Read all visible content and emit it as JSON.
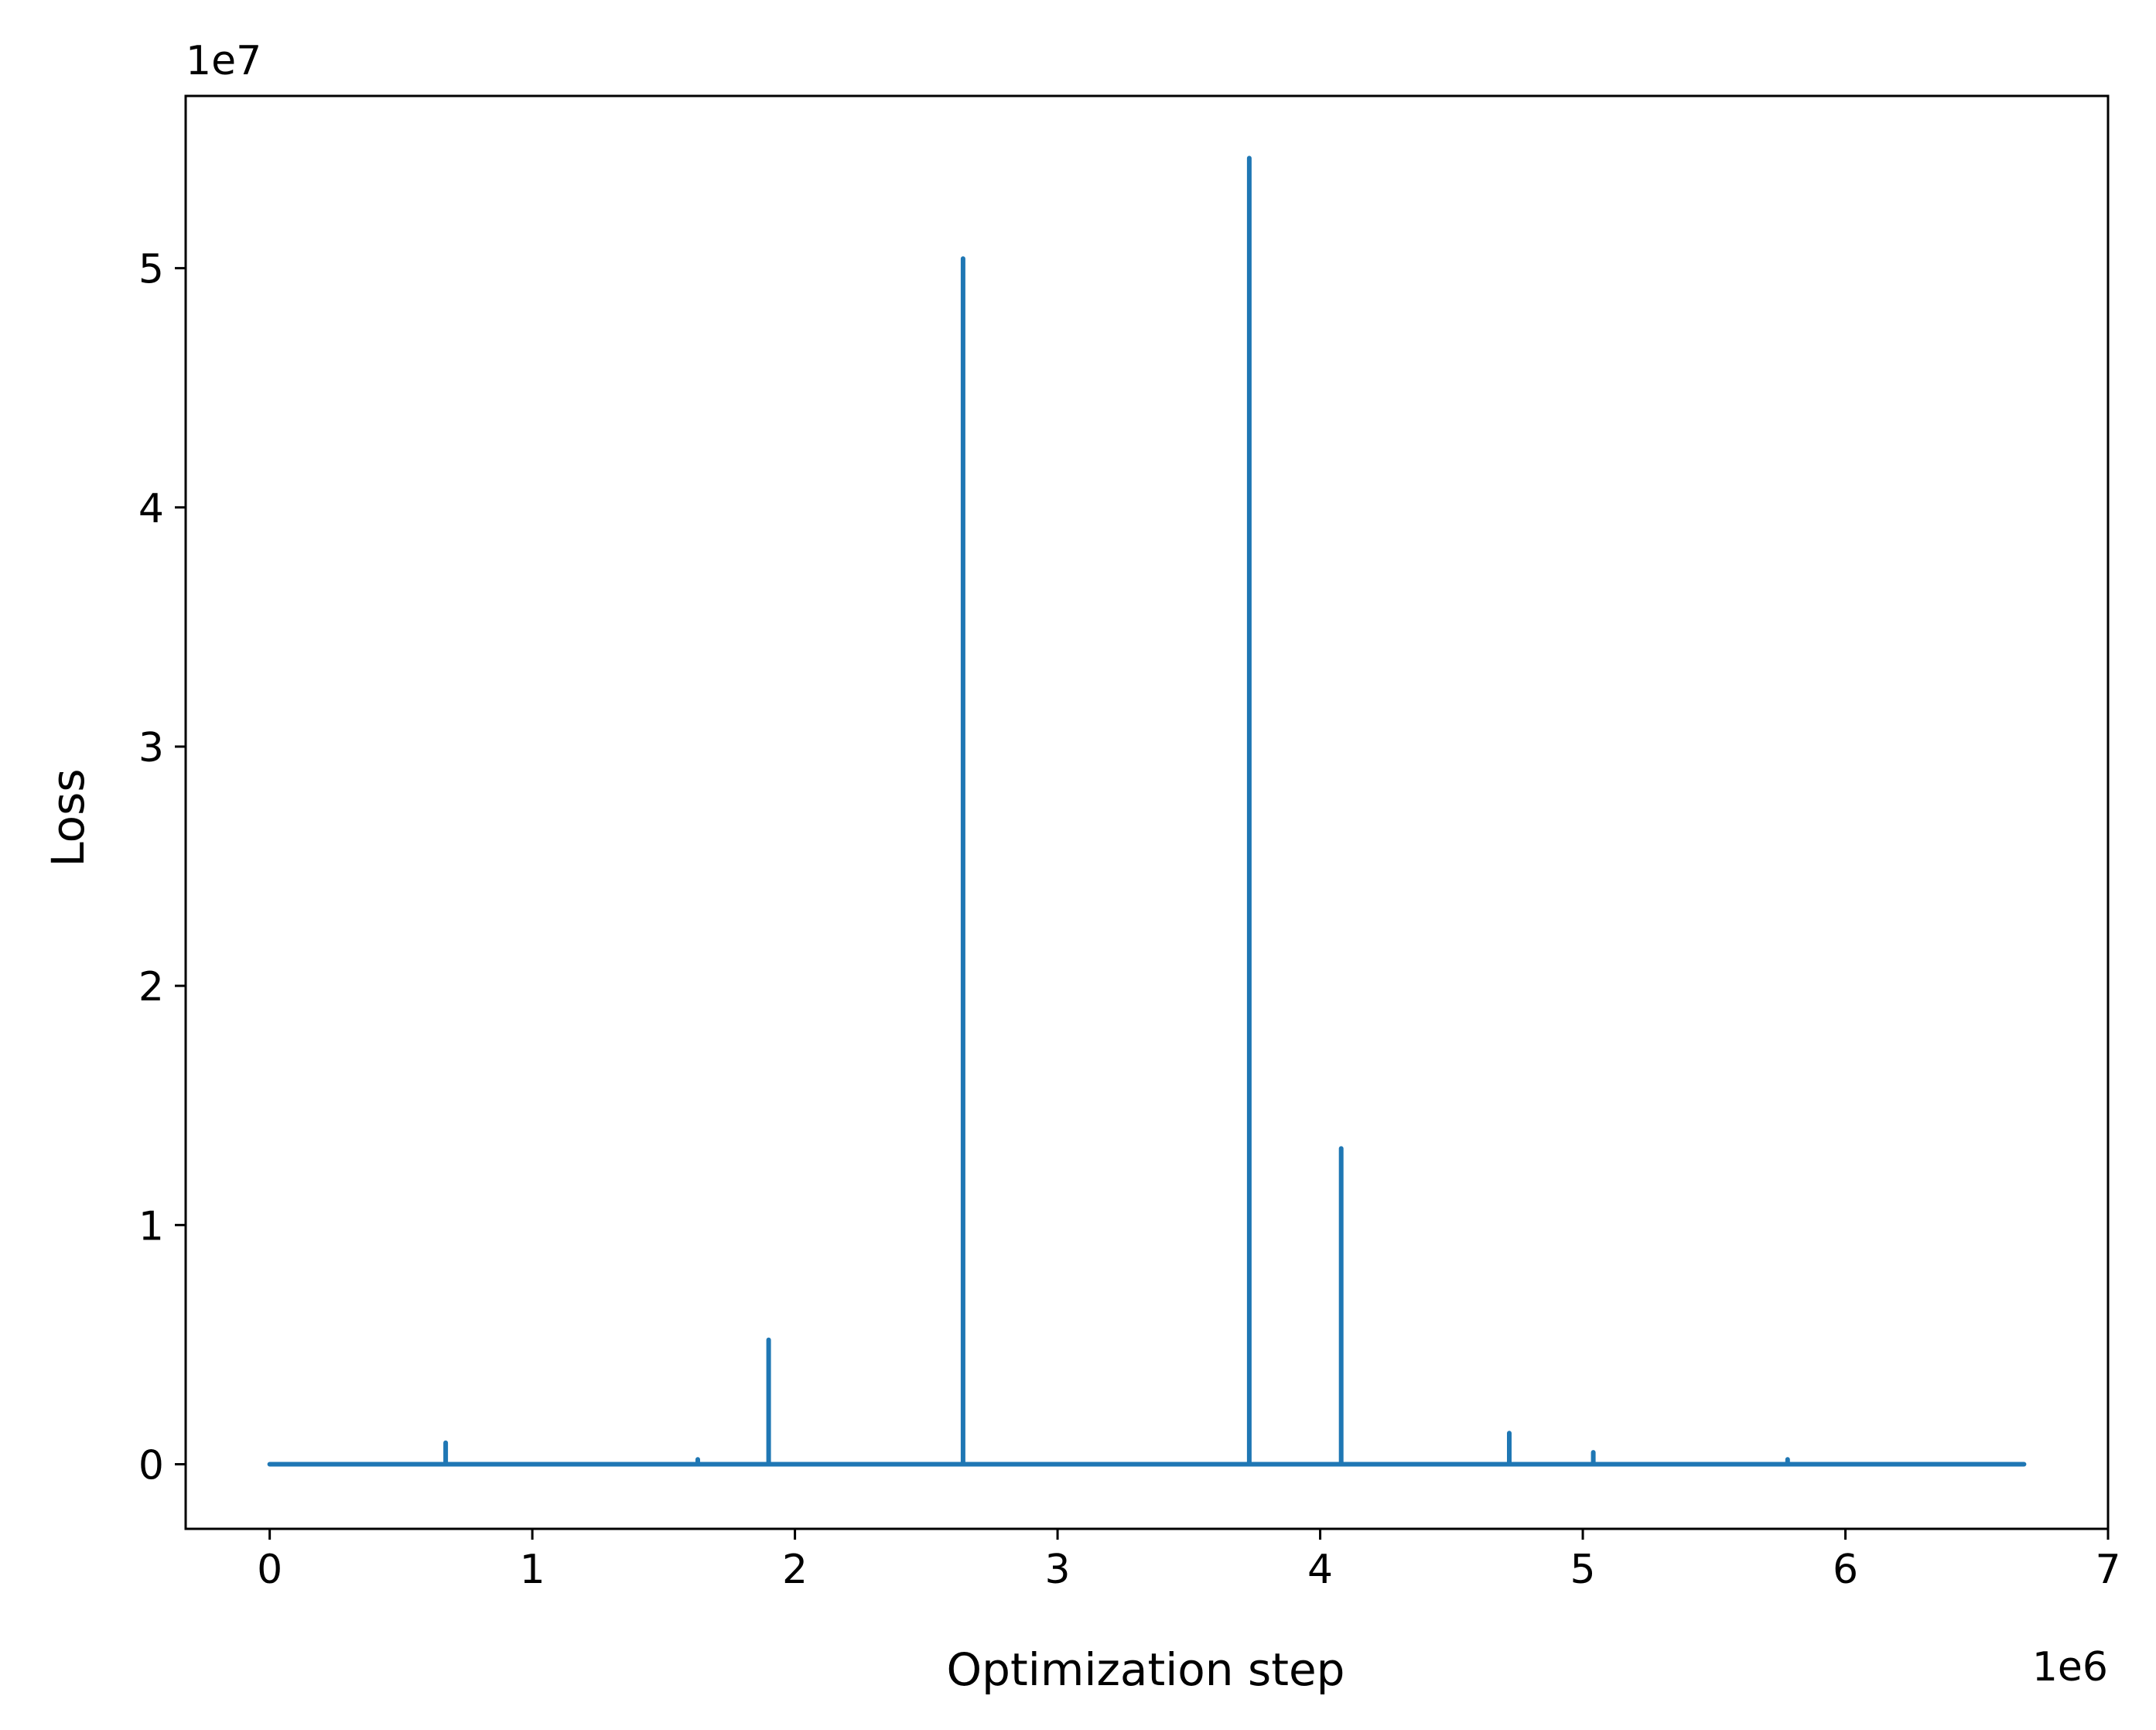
{
  "chart_data": {
    "type": "line",
    "title": "",
    "xlabel": "Optimization step",
    "ylabel": "Loss",
    "x_offset_label": "1e6",
    "y_offset_label": "1e7",
    "xlim": [
      -320000,
      7000000
    ],
    "ylim": [
      -2700000,
      57200000
    ],
    "x_ticks": [
      0,
      1000000,
      2000000,
      3000000,
      4000000,
      5000000,
      6000000,
      7000000
    ],
    "x_tick_labels": [
      "0",
      "1",
      "2",
      "3",
      "4",
      "5",
      "6",
      "7"
    ],
    "y_ticks": [
      0,
      10000000,
      20000000,
      30000000,
      40000000,
      50000000
    ],
    "y_tick_labels": [
      "0",
      "1",
      "2",
      "3",
      "4",
      "5"
    ],
    "grid": false,
    "legend": "none",
    "color": "#1f77b4",
    "series": [
      {
        "x": [
          0,
          670000,
          670000,
          670000,
          1630000,
          1630000,
          1630000,
          1900000,
          1900000,
          1900000,
          2640000,
          2640000,
          2640000,
          3730000,
          3730000,
          3730000,
          4080000,
          4080000,
          4080000,
          4720000,
          4720000,
          4720000,
          5040000,
          5040000,
          5040000,
          5780000,
          5780000,
          5780000,
          6680000
        ],
        "y": [
          0,
          0,
          900000,
          0,
          0,
          200000,
          0,
          0,
          5200000,
          0,
          0,
          50400000,
          0,
          0,
          54600000,
          0,
          0,
          13200000,
          0,
          0,
          1300000,
          0,
          0,
          500000,
          0,
          0,
          200000,
          0,
          0
        ]
      }
    ]
  }
}
